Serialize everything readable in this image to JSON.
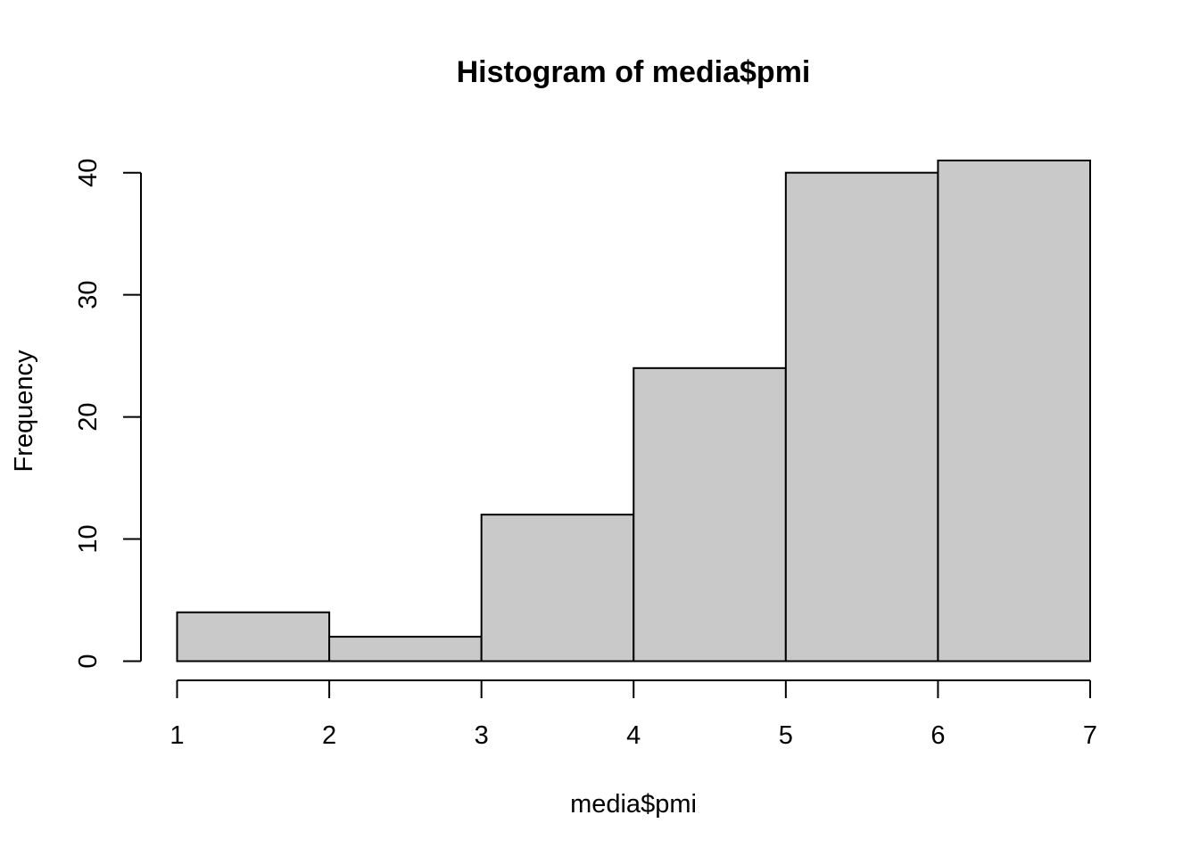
{
  "chart_data": {
    "type": "bar",
    "title": "Histogram of media$pmi",
    "xlabel": "media$pmi",
    "ylabel": "Frequency",
    "bins": [
      {
        "start": 1,
        "end": 2,
        "count": 4
      },
      {
        "start": 2,
        "end": 3,
        "count": 2
      },
      {
        "start": 3,
        "end": 4,
        "count": 12
      },
      {
        "start": 4,
        "end": 5,
        "count": 24
      },
      {
        "start": 5,
        "end": 6,
        "count": 40
      },
      {
        "start": 6,
        "end": 7,
        "count": 41
      }
    ],
    "xlim": [
      1,
      7
    ],
    "ylim": [
      0,
      41
    ],
    "x_ticks": [
      1,
      2,
      3,
      4,
      5,
      6,
      7
    ],
    "y_ticks": [
      0,
      10,
      20,
      30,
      40
    ],
    "grid": false,
    "colors": {
      "bar_fill": "#c9c9c9",
      "bar_stroke": "#000000"
    }
  }
}
